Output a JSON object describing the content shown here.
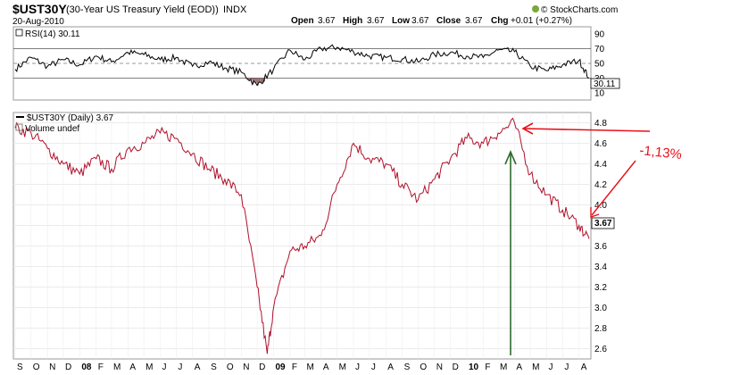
{
  "header": {
    "symbol": "$UST30Y",
    "name": "(30-Year US Treasury Yield (EOD))",
    "exchange": "INDX",
    "date": "20-Aug-2010",
    "open_label": "Open",
    "open": "3.67",
    "high_label": "High",
    "high": "3.67",
    "low_label": "Low",
    "low": "3.67",
    "close_label": "Close",
    "close": "3.67",
    "chg_label": "Chg",
    "chg": "+0.01 (+0.27%)",
    "logo": "© StockCharts.com"
  },
  "rsi_panel": {
    "label": "RSI(14) 30.11",
    "last_value": "30.11",
    "ticks": [
      90,
      70,
      50,
      30,
      10
    ]
  },
  "price_panel": {
    "label": "$UST30Y (Daily) 3.67",
    "volume_label": "Volume undef",
    "last_value": "3.67",
    "annotation": "-1,13%"
  },
  "colors": {
    "price_line": "#b0102a",
    "rsi_line": "#000000",
    "rsi_oversold_fill": "#8b6464",
    "annotation": "#e8101a",
    "green_arrow": "#2f6b2f",
    "grid": "#d0d0d0"
  },
  "chart_data": [
    {
      "type": "line",
      "title": "RSI(14) 30.11",
      "ylim": [
        0,
        100
      ],
      "guides": [
        30,
        50,
        70
      ],
      "x": [
        "2007-09-01",
        "2007-10-01",
        "2007-11-01",
        "2007-12-01",
        "2008-01-01",
        "2008-02-01",
        "2008-03-01",
        "2008-04-01",
        "2008-05-01",
        "2008-06-01",
        "2008-07-01",
        "2008-08-01",
        "2008-09-01",
        "2008-10-01",
        "2008-11-01",
        "2008-12-01",
        "2009-01-01",
        "2009-02-01",
        "2009-03-01",
        "2009-04-01",
        "2009-05-01",
        "2009-06-01",
        "2009-07-01",
        "2009-08-01",
        "2009-09-01",
        "2009-10-01",
        "2009-11-01",
        "2009-12-01",
        "2010-01-01",
        "2010-02-01",
        "2010-03-01",
        "2010-04-01",
        "2010-05-01",
        "2010-06-01",
        "2010-07-01",
        "2010-08-01",
        "2010-08-20"
      ],
      "values": [
        42,
        58,
        46,
        55,
        48,
        60,
        52,
        65,
        62,
        55,
        58,
        46,
        52,
        44,
        38,
        20,
        42,
        68,
        55,
        70,
        72,
        66,
        60,
        58,
        56,
        52,
        62,
        65,
        60,
        58,
        68,
        66,
        46,
        40,
        48,
        54,
        30.11
      ]
    },
    {
      "type": "line",
      "title": "$UST30Y (Daily) 3.67",
      "ylim": [
        2.5,
        4.9
      ],
      "yticks": [
        2.6,
        2.8,
        3.0,
        3.2,
        3.4,
        3.6,
        3.8,
        4.0,
        4.2,
        4.4,
        4.6,
        4.8
      ],
      "x": [
        "2007-09-01",
        "2007-10-01",
        "2007-11-01",
        "2007-12-01",
        "2008-01-01",
        "2008-02-01",
        "2008-03-01",
        "2008-04-01",
        "2008-05-01",
        "2008-06-01",
        "2008-07-01",
        "2008-08-01",
        "2008-09-01",
        "2008-10-01",
        "2008-11-01",
        "2008-12-01",
        "2008-12-20",
        "2009-01-01",
        "2009-02-01",
        "2009-03-01",
        "2009-04-01",
        "2009-05-01",
        "2009-06-01",
        "2009-07-01",
        "2009-08-01",
        "2009-09-01",
        "2009-10-01",
        "2009-11-01",
        "2009-12-01",
        "2010-01-01",
        "2010-02-01",
        "2010-03-01",
        "2010-04-01",
        "2010-05-01",
        "2010-06-01",
        "2010-07-01",
        "2010-08-01",
        "2010-08-20"
      ],
      "values": [
        4.75,
        4.7,
        4.55,
        4.4,
        4.3,
        4.45,
        4.35,
        4.55,
        4.6,
        4.7,
        4.65,
        4.5,
        4.35,
        4.25,
        4.1,
        3.2,
        2.55,
        3.0,
        3.55,
        3.6,
        3.7,
        4.2,
        4.6,
        4.45,
        4.4,
        4.2,
        4.05,
        4.25,
        4.45,
        4.65,
        4.6,
        4.7,
        4.8,
        4.3,
        4.1,
        3.95,
        3.8,
        3.67
      ],
      "tick_labels": [
        "S",
        "O",
        "N",
        "D",
        "08",
        "F",
        "M",
        "A",
        "M",
        "J",
        "J",
        "A",
        "S",
        "O",
        "N",
        "D",
        "09",
        "F",
        "M",
        "A",
        "M",
        "J",
        "J",
        "A",
        "S",
        "O",
        "N",
        "D",
        "10",
        "F",
        "M",
        "A",
        "M",
        "J",
        "J",
        "A"
      ]
    }
  ]
}
